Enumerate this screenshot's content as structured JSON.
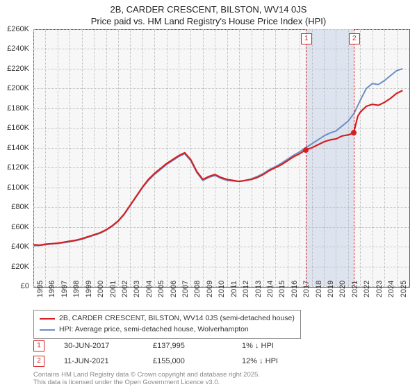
{
  "title_line1": "2B, CARDER CRESCENT, BILSTON, WV14 0JS",
  "title_line2": "Price paid vs. HM Land Registry's House Price Index (HPI)",
  "chart": {
    "type": "line",
    "background_color": "#f7f7f8",
    "grid_color": "#bbbbbb",
    "border_color": "#555555",
    "x": {
      "min": 1995,
      "max": 2026,
      "ticks": [
        1995,
        1996,
        1997,
        1998,
        1999,
        2000,
        2001,
        2002,
        2003,
        2004,
        2005,
        2006,
        2007,
        2008,
        2009,
        2010,
        2011,
        2012,
        2013,
        2014,
        2015,
        2016,
        2017,
        2018,
        2019,
        2020,
        2021,
        2022,
        2023,
        2024,
        2025
      ],
      "label_fontsize": 11
    },
    "y": {
      "min": 0,
      "max": 260000,
      "tick_step": 20000,
      "labels": [
        "£0",
        "£20K",
        "£40K",
        "£60K",
        "£80K",
        "£100K",
        "£120K",
        "£140K",
        "£160K",
        "£180K",
        "£200K",
        "£220K",
        "£240K",
        "£260K"
      ],
      "label_fontsize": 11
    },
    "band": {
      "from": 2017.5,
      "to": 2021.45,
      "color": "#dde4ef"
    },
    "series": [
      {
        "name": "2B, CARDER CRESCENT, BILSTON, WV14 0JS (semi-detached house)",
        "color": "#d42020",
        "width": 2.2,
        "data": [
          [
            1995,
            42000
          ],
          [
            1995.5,
            41500
          ],
          [
            1996,
            42500
          ],
          [
            1996.5,
            43000
          ],
          [
            1997,
            43500
          ],
          [
            1997.5,
            44500
          ],
          [
            1998,
            45500
          ],
          [
            1998.5,
            46500
          ],
          [
            1999,
            48000
          ],
          [
            1999.5,
            50000
          ],
          [
            2000,
            52000
          ],
          [
            2000.5,
            54000
          ],
          [
            2001,
            57000
          ],
          [
            2001.5,
            61000
          ],
          [
            2002,
            66000
          ],
          [
            2002.5,
            73000
          ],
          [
            2003,
            82000
          ],
          [
            2003.5,
            91000
          ],
          [
            2004,
            100000
          ],
          [
            2004.5,
            108000
          ],
          [
            2005,
            114000
          ],
          [
            2005.5,
            119000
          ],
          [
            2006,
            124000
          ],
          [
            2006.5,
            128000
          ],
          [
            2007,
            132000
          ],
          [
            2007.5,
            135000
          ],
          [
            2008,
            128000
          ],
          [
            2008.5,
            116000
          ],
          [
            2009,
            108000
          ],
          [
            2009.5,
            111000
          ],
          [
            2010,
            113000
          ],
          [
            2010.5,
            110000
          ],
          [
            2011,
            108000
          ],
          [
            2011.5,
            107000
          ],
          [
            2012,
            106000
          ],
          [
            2012.5,
            107000
          ],
          [
            2013,
            108000
          ],
          [
            2013.5,
            110000
          ],
          [
            2014,
            113000
          ],
          [
            2014.5,
            117000
          ],
          [
            2015,
            120000
          ],
          [
            2015.5,
            123000
          ],
          [
            2016,
            127000
          ],
          [
            2016.5,
            131000
          ],
          [
            2017,
            134000
          ],
          [
            2017.5,
            137995
          ],
          [
            2018,
            140000
          ],
          [
            2018.5,
            143000
          ],
          [
            2019,
            146000
          ],
          [
            2019.5,
            148000
          ],
          [
            2020,
            149000
          ],
          [
            2020.5,
            152000
          ],
          [
            2021,
            153000
          ],
          [
            2021.45,
            155000
          ],
          [
            2021.8,
            172000
          ],
          [
            2022,
            176000
          ],
          [
            2022.5,
            182000
          ],
          [
            2023,
            184000
          ],
          [
            2023.5,
            183000
          ],
          [
            2024,
            186000
          ],
          [
            2024.5,
            190000
          ],
          [
            2025,
            195000
          ],
          [
            2025.5,
            198000
          ]
        ]
      },
      {
        "name": "HPI: Average price, semi-detached house, Wolverhampton",
        "color": "#6a8fc5",
        "width": 2.0,
        "data": [
          [
            1995,
            41000
          ],
          [
            1995.5,
            41200
          ],
          [
            1996,
            42000
          ],
          [
            1996.5,
            42800
          ],
          [
            1997,
            43200
          ],
          [
            1997.5,
            44000
          ],
          [
            1998,
            45000
          ],
          [
            1998.5,
            46000
          ],
          [
            1999,
            47500
          ],
          [
            1999.5,
            49500
          ],
          [
            2000,
            51500
          ],
          [
            2000.5,
            53500
          ],
          [
            2001,
            56500
          ],
          [
            2001.5,
            60500
          ],
          [
            2002,
            65500
          ],
          [
            2002.5,
            72500
          ],
          [
            2003,
            81500
          ],
          [
            2003.5,
            90500
          ],
          [
            2004,
            99500
          ],
          [
            2004.5,
            107000
          ],
          [
            2005,
            113000
          ],
          [
            2005.5,
            118000
          ],
          [
            2006,
            123000
          ],
          [
            2006.5,
            127000
          ],
          [
            2007,
            131000
          ],
          [
            2007.5,
            134000
          ],
          [
            2008,
            127000
          ],
          [
            2008.5,
            115000
          ],
          [
            2009,
            107000
          ],
          [
            2009.5,
            110000
          ],
          [
            2010,
            112000
          ],
          [
            2010.5,
            109000
          ],
          [
            2011,
            107000
          ],
          [
            2011.5,
            106500
          ],
          [
            2012,
            106000
          ],
          [
            2012.5,
            107000
          ],
          [
            2013,
            108500
          ],
          [
            2013.5,
            111000
          ],
          [
            2014,
            114000
          ],
          [
            2014.5,
            118000
          ],
          [
            2015,
            121000
          ],
          [
            2015.5,
            124500
          ],
          [
            2016,
            128500
          ],
          [
            2016.5,
            132500
          ],
          [
            2017,
            136000
          ],
          [
            2017.5,
            140000
          ],
          [
            2018,
            144000
          ],
          [
            2018.5,
            148000
          ],
          [
            2019,
            152000
          ],
          [
            2019.5,
            155000
          ],
          [
            2020,
            157000
          ],
          [
            2020.5,
            162000
          ],
          [
            2021,
            167000
          ],
          [
            2021.5,
            175000
          ],
          [
            2022,
            188000
          ],
          [
            2022.5,
            200000
          ],
          [
            2023,
            205000
          ],
          [
            2023.5,
            204000
          ],
          [
            2024,
            208000
          ],
          [
            2024.5,
            213000
          ],
          [
            2025,
            218000
          ],
          [
            2025.5,
            220000
          ]
        ]
      }
    ],
    "markers": [
      {
        "num": "1",
        "x": 2017.5,
        "y": 137995
      },
      {
        "num": "2",
        "x": 2021.45,
        "y": 155000
      }
    ]
  },
  "legend": {
    "items": [
      {
        "color": "#d42020",
        "label": "2B, CARDER CRESCENT, BILSTON, WV14 0JS (semi-detached house)"
      },
      {
        "color": "#6a8fc5",
        "label": "HPI: Average price, semi-detached house, Wolverhampton"
      }
    ]
  },
  "footer": {
    "rows": [
      {
        "num": "1",
        "date": "30-JUN-2017",
        "price": "£137,995",
        "diff": "1% ↓ HPI"
      },
      {
        "num": "2",
        "date": "11-JUN-2021",
        "price": "£155,000",
        "diff": "12% ↓ HPI"
      }
    ],
    "attribution_line1": "Contains HM Land Registry data © Crown copyright and database right 2025.",
    "attribution_line2": "This data is licensed under the Open Government Licence v3.0."
  }
}
